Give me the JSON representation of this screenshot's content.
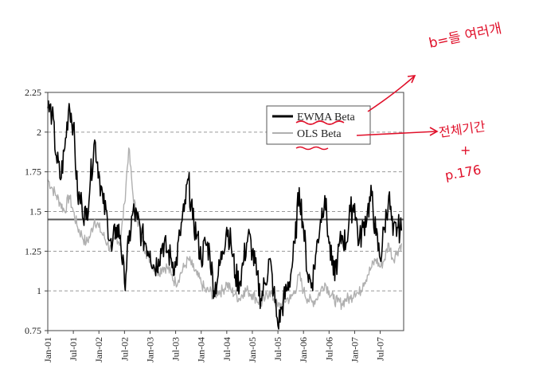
{
  "chart_data": {
    "type": "line",
    "title": "",
    "xlabel": "",
    "ylabel": "",
    "ylim": [
      0.75,
      2.25
    ],
    "yticks": [
      "2.25",
      "2",
      "1.75",
      "1.5",
      "1.25",
      "1",
      "0.75"
    ],
    "xticks": [
      "Jan-01",
      "Jul-01",
      "Jan-02",
      "Jul-02",
      "Jan-03",
      "Jul-03",
      "Jan-04",
      "Jul-04",
      "Jan-05",
      "Jul-05",
      "Jan-06",
      "Jul-06",
      "Jan-07",
      "Jul-07"
    ],
    "grid": "horizontal dashed",
    "legend_position": "top-right",
    "reference_line": {
      "y": 1.45,
      "color": "#555555"
    },
    "x_start": "Jan-01",
    "x_end": "Dec-07",
    "series": [
      {
        "name": "EWMA Beta",
        "color": "#000000",
        "x_months": [
          0,
          1,
          2,
          3,
          4,
          5,
          6,
          7,
          8,
          9,
          10,
          11,
          12,
          13,
          14,
          15,
          16,
          17,
          18,
          19,
          20,
          21,
          22,
          23,
          24,
          25,
          26,
          27,
          28,
          29,
          30,
          31,
          32,
          33,
          34,
          35,
          36,
          37,
          38,
          39,
          40,
          41,
          42,
          43,
          44,
          45,
          46,
          47,
          48,
          49,
          50,
          51,
          52,
          53,
          54,
          55,
          56,
          57,
          58,
          59,
          60,
          61,
          62,
          63,
          64,
          65,
          66,
          67,
          68,
          69,
          70,
          71,
          72,
          73,
          74,
          75,
          76,
          77,
          78,
          79,
          80,
          81,
          82,
          83
        ],
        "values": [
          2.15,
          2.12,
          1.85,
          1.7,
          1.9,
          2.18,
          2.05,
          1.6,
          1.55,
          1.45,
          1.7,
          1.95,
          1.75,
          1.55,
          1.45,
          1.25,
          1.4,
          1.35,
          1.05,
          1.3,
          1.5,
          1.45,
          1.35,
          1.3,
          1.25,
          1.15,
          1.2,
          1.3,
          1.25,
          1.2,
          1.15,
          1.35,
          1.5,
          1.7,
          1.45,
          1.35,
          1.2,
          1.3,
          1.25,
          1.0,
          1.1,
          1.25,
          1.4,
          1.3,
          1.1,
          1.05,
          1.2,
          1.35,
          1.25,
          1.1,
          0.95,
          1.05,
          1.2,
          1.0,
          0.78,
          0.9,
          1.0,
          1.1,
          1.3,
          1.65,
          1.4,
          1.1,
          1.05,
          1.25,
          1.45,
          1.6,
          1.3,
          1.1,
          1.2,
          1.35,
          1.3,
          1.5,
          1.55,
          1.3,
          1.4,
          1.5,
          1.6,
          1.35,
          1.2,
          1.4,
          1.6,
          1.35,
          1.4,
          1.38
        ]
      },
      {
        "name": "OLS Beta",
        "color": "#b0b0b0",
        "x_months": [
          0,
          1,
          2,
          3,
          4,
          5,
          6,
          7,
          8,
          9,
          10,
          11,
          12,
          13,
          14,
          15,
          16,
          17,
          18,
          19,
          20,
          21,
          22,
          23,
          24,
          25,
          26,
          27,
          28,
          29,
          30,
          31,
          32,
          33,
          34,
          35,
          36,
          37,
          38,
          39,
          40,
          41,
          42,
          43,
          44,
          45,
          46,
          47,
          48,
          49,
          50,
          51,
          52,
          53,
          54,
          55,
          56,
          57,
          58,
          59,
          60,
          61,
          62,
          63,
          64,
          65,
          66,
          67,
          68,
          69,
          70,
          71,
          72,
          73,
          74,
          75,
          76,
          77,
          78,
          79,
          80,
          81,
          82,
          83
        ],
        "values": [
          1.7,
          1.65,
          1.6,
          1.55,
          1.5,
          1.6,
          1.5,
          1.4,
          1.35,
          1.3,
          1.35,
          1.45,
          1.4,
          1.35,
          1.3,
          1.25,
          1.35,
          1.3,
          1.55,
          1.9,
          1.6,
          1.45,
          1.35,
          1.25,
          1.2,
          1.15,
          1.12,
          1.15,
          1.15,
          1.1,
          1.05,
          1.1,
          1.15,
          1.2,
          1.15,
          1.1,
          1.05,
          1.0,
          1.0,
          0.97,
          1.0,
          1.0,
          1.05,
          1.0,
          0.98,
          0.95,
          1.0,
          1.0,
          0.98,
          0.95,
          0.92,
          0.95,
          1.0,
          0.95,
          0.9,
          0.92,
          0.95,
          0.95,
          1.0,
          1.1,
          1.0,
          0.95,
          0.93,
          0.95,
          1.0,
          1.05,
          1.0,
          0.95,
          0.93,
          0.92,
          0.95,
          0.95,
          1.0,
          0.98,
          1.05,
          1.1,
          1.15,
          1.2,
          1.15,
          1.2,
          1.3,
          1.2,
          1.25,
          1.3
        ]
      }
    ]
  },
  "annotations": {
    "note_top": "b=들 여러개",
    "note_mid": "전체기간",
    "note_plus": "+",
    "note_bottom": "p.176"
  }
}
